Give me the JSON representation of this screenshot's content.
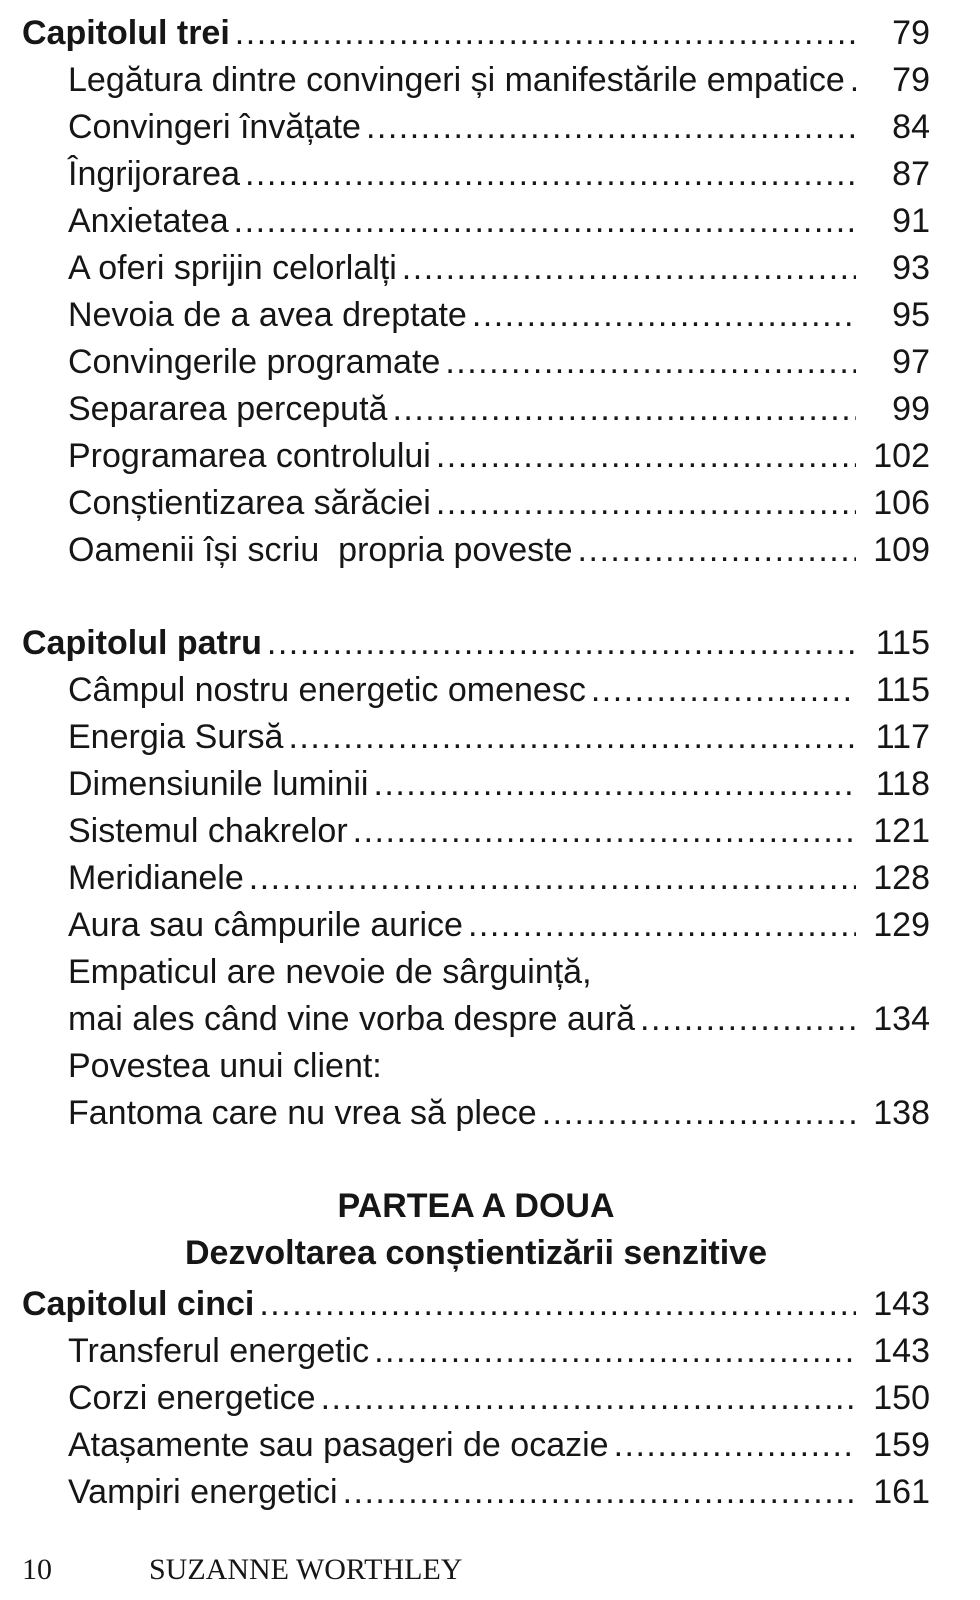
{
  "page": {
    "background_color": "#ffffff",
    "text_color": "#161616"
  },
  "toc": {
    "section1": [
      {
        "label": "Capitolul trei",
        "page": "79",
        "level": "chapter"
      },
      {
        "label": "Legătura dintre convingeri și manifestările empatice",
        "page": "79",
        "level": "sub"
      },
      {
        "label": "Convingeri învățate",
        "page": "84",
        "level": "sub"
      },
      {
        "label": "Îngrijorarea",
        "page": "87",
        "level": "sub"
      },
      {
        "label": "Anxietatea",
        "page": "91",
        "level": "sub"
      },
      {
        "label": "A oferi sprijin celorlalți",
        "page": "93",
        "level": "sub"
      },
      {
        "label": "Nevoia de a avea dreptate",
        "page": "95",
        "level": "sub"
      },
      {
        "label": "Convingerile programate",
        "page": "97",
        "level": "sub"
      },
      {
        "label": "Separarea percepută",
        "page": "99",
        "level": "sub"
      },
      {
        "label": "Programarea controlului",
        "page": "102",
        "level": "sub"
      },
      {
        "label": "Conștientizarea sărăciei",
        "page": "106",
        "level": "sub"
      },
      {
        "label": "Oamenii își scriu  propria poveste",
        "page": "109",
        "level": "sub"
      }
    ],
    "section2": [
      {
        "label": "Capitolul patru",
        "page": "115",
        "level": "chapter"
      },
      {
        "label": "Câmpul nostru energetic omenesc",
        "page": "115",
        "level": "sub"
      },
      {
        "label": "Energia Sursă",
        "page": "117",
        "level": "sub"
      },
      {
        "label": "Dimensiunile luminii",
        "page": "118",
        "level": "sub"
      },
      {
        "label": "Sistemul chakrelor",
        "page": "121",
        "level": "sub"
      },
      {
        "label": "Meridianele",
        "page": "128",
        "level": "sub"
      },
      {
        "label": "Aura sau câmpurile aurice",
        "page": "129",
        "level": "sub"
      },
      {
        "label": "Empaticul are nevoie de sârguință,",
        "page": null,
        "level": "sub"
      },
      {
        "label": "mai ales când vine vorba despre aură",
        "page": "134",
        "level": "sub"
      },
      {
        "label": "Povestea unui client:",
        "page": null,
        "level": "sub"
      },
      {
        "label": "Fantoma care nu vrea să plece",
        "page": "138",
        "level": "sub"
      }
    ],
    "part": {
      "title": "PARTEA A DOUA",
      "subtitle": "Dezvoltarea conștientizării senzitive"
    },
    "section3": [
      {
        "label": "Capitolul cinci",
        "page": "143",
        "level": "chapter"
      },
      {
        "label": "Transferul energetic",
        "page": "143",
        "level": "sub"
      },
      {
        "label": "Corzi energetice",
        "page": "150",
        "level": "sub"
      },
      {
        "label": "Atașamente sau pasageri de ocazie",
        "page": "159",
        "level": "sub"
      },
      {
        "label": "Vampiri energetici",
        "page": "161",
        "level": "sub"
      }
    ]
  },
  "footer": {
    "page_number": "10",
    "author": "SUZANNE WORTHLEY"
  }
}
